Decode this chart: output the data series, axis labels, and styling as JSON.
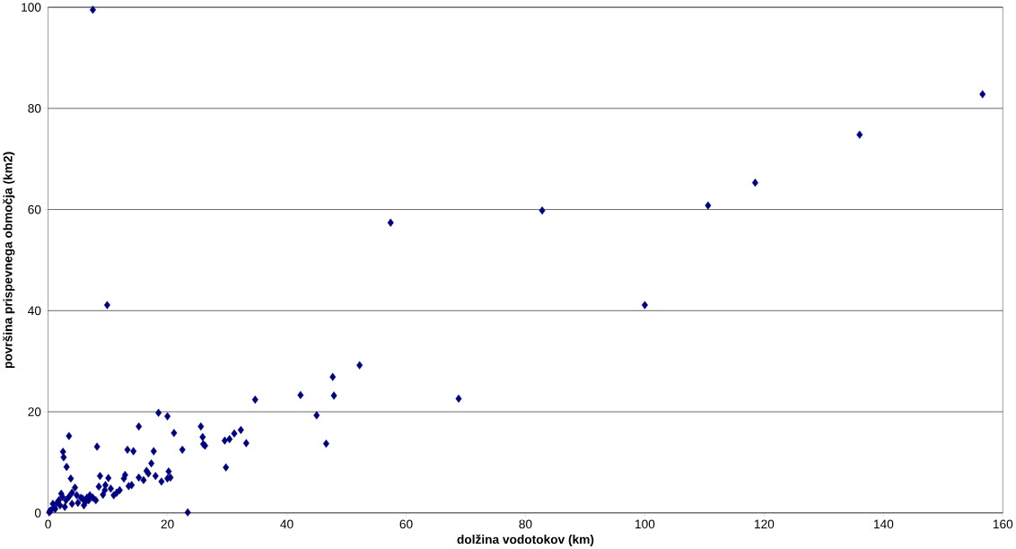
{
  "chart_data": {
    "type": "scatter",
    "xlabel": "dolžina vodotokov (km)",
    "ylabel": "površina prispevnega območja (km2)",
    "xlim": [
      0,
      160
    ],
    "ylim": [
      0,
      100
    ],
    "xticks": [
      0,
      20,
      40,
      60,
      80,
      100,
      120,
      140,
      160
    ],
    "yticks": [
      0,
      20,
      40,
      60,
      80,
      100
    ],
    "grid": "y",
    "marker": "diamond",
    "series": [
      {
        "color": "#000080",
        "x": [
          7.5,
          9.9,
          57.4,
          82.8,
          100,
          110.6,
          118.5,
          136,
          156.6,
          68.8,
          52.2,
          47.7,
          47.9,
          42.3,
          45,
          46.6,
          34.7,
          33.2,
          32.3,
          31.2,
          30.4,
          29.8,
          29.6,
          26.3,
          25.9,
          25.6,
          26,
          23.4,
          21.1,
          20.2,
          20,
          20,
          18.5,
          19,
          18,
          17.7,
          17.3,
          16.8,
          16.5,
          16,
          15.2,
          15.2,
          14.3,
          13.5,
          13.3,
          12.9,
          12.7,
          11.5,
          10.1,
          9.6,
          9.2,
          8.7,
          8.5,
          8.2,
          7.5,
          6.8,
          6.3,
          5.5,
          5,
          4.5,
          4,
          3.5,
          3.8,
          2.5,
          2.6,
          3.1,
          2.2,
          3,
          1.5,
          1,
          0.5,
          0.2,
          2,
          4,
          6,
          8,
          11,
          12,
          1.2,
          0.8,
          2.8,
          3.5,
          5.8,
          7,
          9.5,
          14,
          22.5,
          20.5,
          1.8,
          2.4,
          0.3,
          4.8,
          6.5,
          10.5
        ],
        "values": [
          99.5,
          41.1,
          57.4,
          59.8,
          41.1,
          60.8,
          65.3,
          74.8,
          82.8,
          22.6,
          29.2,
          26.9,
          23.2,
          23.3,
          19.3,
          13.7,
          22.4,
          13.8,
          16.4,
          15.7,
          14.6,
          9,
          14.3,
          13.3,
          15,
          17.1,
          13.6,
          0.1,
          15.8,
          8.2,
          19.1,
          6.8,
          19.8,
          6.2,
          7.3,
          12.2,
          9.8,
          7.8,
          8.3,
          6.5,
          17.1,
          7,
          12.2,
          5.3,
          12.5,
          7.5,
          6.8,
          4,
          6.9,
          5.5,
          3.6,
          7.3,
          5.2,
          13.1,
          3,
          2.5,
          2.2,
          3,
          2,
          5,
          4,
          15.2,
          6.8,
          12.1,
          11,
          9.1,
          3.8,
          2.5,
          2,
          1,
          0.5,
          0.1,
          1.5,
          1.8,
          1.5,
          2.5,
          3.5,
          4.5,
          0.8,
          1.8,
          1.2,
          3.2,
          2.8,
          3.5,
          4.5,
          5.5,
          12.5,
          7,
          2.5,
          3.2,
          0.4,
          3.5,
          3,
          4.8
        ]
      }
    ]
  }
}
